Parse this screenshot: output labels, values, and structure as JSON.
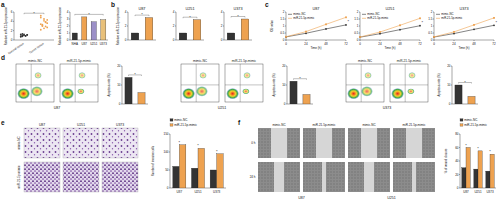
{
  "figure": {
    "panels": [
      "a",
      "b",
      "c",
      "d",
      "e",
      "f"
    ],
    "flow": [
      {
        "cell": "U87",
        "conditions": [
          "mimic-NC",
          "miR-21-5p-mimic"
        ]
      },
      {
        "cell": "U251",
        "conditions": [
          "mimic-NC",
          "miR-21-5p-mimic"
        ]
      },
      {
        "cell": "U373",
        "conditions": [
          "mimic-NC",
          "miR-21-5p-mimic"
        ]
      }
    ],
    "transwell": {
      "columns": [
        "U87",
        "U251",
        "U373"
      ],
      "rows": [
        "mimic-NC",
        "miR-21-5p-mimic"
      ]
    },
    "wound": {
      "columns": [
        "mimic-NC",
        "miR-21-5p-mimic",
        "mimic-NC",
        "miR-21-5p-mimic"
      ],
      "cells": [
        "U87",
        "U251"
      ],
      "rows": [
        "0 h",
        "24 h"
      ]
    }
  },
  "chart_data": [
    {
      "type": "dot",
      "ylabel": "Relative miR-21-5p expression",
      "categories": [
        "Normal tissue",
        "Tumor tissue"
      ],
      "values": [
        [
          0.8,
          1.0,
          1.2,
          0.9,
          1.1,
          0.7,
          1.3,
          1.0,
          0.9,
          1.1,
          1.2,
          0.8
        ],
        [
          2.2,
          3.1,
          4.5,
          3.8,
          2.7,
          5.2,
          3.3,
          4.1,
          2.9,
          3.6,
          4.8,
          3.0,
          2.5,
          3.9,
          4.3,
          3.4
        ]
      ],
      "colors": [
        "#333333",
        "#eea250"
      ],
      "ylim": [
        0,
        6
      ],
      "yticks": [
        0,
        2,
        4,
        6
      ],
      "annotations": [
        "*"
      ]
    },
    {
      "type": "bar",
      "ylabel": "Relative miR-21-5p expression",
      "categories": [
        "NHA",
        "U87",
        "U251",
        "U373"
      ],
      "values": [
        1,
        3.3,
        2.6,
        2.9
      ],
      "colors": [
        "#333333",
        "#eea250",
        "#9b8fc7",
        "#e8c07a"
      ],
      "ylim": [
        0,
        4
      ],
      "yticks": [
        0,
        1,
        2,
        3,
        4
      ],
      "annotations": [
        "*"
      ]
    },
    {
      "type": "bar",
      "title": "U87",
      "ylabel": "Relative miR-21-5p expression",
      "categories": [
        null,
        null
      ],
      "values": [
        1,
        3.2
      ],
      "colors": [
        "#333333",
        "#eea250"
      ],
      "ylim": [
        0,
        4
      ],
      "yticks": [
        0,
        2,
        4
      ],
      "annotations": [
        "*"
      ]
    },
    {
      "type": "bar",
      "title": "U251",
      "categories": [
        null,
        null
      ],
      "values": [
        1,
        2.9
      ],
      "colors": [
        "#333333",
        "#eea250"
      ],
      "ylim": [
        0,
        4
      ],
      "yticks": [
        0,
        2,
        4
      ],
      "annotations": [
        "*"
      ]
    },
    {
      "type": "bar",
      "title": "U373",
      "categories": [
        null,
        null
      ],
      "values": [
        1,
        3.0
      ],
      "colors": [
        "#333333",
        "#eea250"
      ],
      "ylim": [
        0,
        4
      ],
      "yticks": [
        0,
        2,
        4
      ],
      "annotations": [
        "*"
      ]
    },
    {
      "type": "line",
      "title": "U87",
      "xlabel": "Time (h)",
      "ylabel": "OD value",
      "x": [
        0,
        24,
        48,
        72
      ],
      "xlim": [
        0,
        72
      ],
      "xticks": [
        0,
        24,
        48,
        72
      ],
      "ylim": [
        0,
        2
      ],
      "yticks": [
        0,
        0.5,
        1,
        1.5,
        2
      ],
      "legend": "upper left",
      "series": [
        {
          "name": "mimic-NC",
          "color": "#333333",
          "marker": "circle",
          "values": [
            0.22,
            0.48,
            0.79,
            1.08
          ]
        },
        {
          "name": "miR-21-5p-mimic",
          "color": "#eea250",
          "marker": "square",
          "values": [
            0.23,
            0.6,
            1.12,
            1.62
          ]
        }
      ],
      "annotations": [
        "*"
      ]
    },
    {
      "type": "line",
      "title": "U251",
      "xlabel": "Time (h)",
      "x": [
        0,
        24,
        48,
        72
      ],
      "xlim": [
        0,
        72
      ],
      "xticks": [
        0,
        24,
        48,
        72
      ],
      "ylim": [
        0,
        2
      ],
      "yticks": [
        0,
        0.5,
        1,
        1.5,
        2
      ],
      "legend": "upper left",
      "series": [
        {
          "name": "mimic-NC",
          "color": "#333333",
          "marker": "circle",
          "values": [
            0.2,
            0.45,
            0.74,
            1.02
          ]
        },
        {
          "name": "miR-21-5p-mimic",
          "color": "#eea250",
          "marker": "square",
          "values": [
            0.21,
            0.57,
            1.05,
            1.55
          ]
        }
      ],
      "annotations": [
        "*"
      ]
    },
    {
      "type": "line",
      "title": "U373",
      "xlabel": "Time (h)",
      "x": [
        0,
        24,
        48,
        72
      ],
      "xlim": [
        0,
        72
      ],
      "xticks": [
        0,
        24,
        48,
        72
      ],
      "ylim": [
        0,
        2
      ],
      "yticks": [
        0,
        0.5,
        1,
        1.5,
        2
      ],
      "legend": "upper left",
      "series": [
        {
          "name": "mimic-NC",
          "color": "#333333",
          "marker": "circle",
          "values": [
            0.21,
            0.46,
            0.76,
            1.05
          ]
        },
        {
          "name": "miR-21-5p-mimic",
          "color": "#eea250",
          "marker": "square",
          "values": [
            0.22,
            0.58,
            1.08,
            1.58
          ]
        }
      ],
      "annotations": [
        "*"
      ]
    },
    {
      "type": "bar",
      "ylabel": "Apoptosis rate (%)",
      "categories": [
        null,
        null
      ],
      "values": [
        14,
        6
      ],
      "colors": [
        "#333333",
        "#eea250"
      ],
      "ylim": [
        0,
        20
      ],
      "yticks": [
        0,
        10,
        20
      ],
      "annotations": [
        "*"
      ]
    },
    {
      "type": "bar",
      "ylabel": "Apoptosis rate (%)",
      "categories": [
        null,
        null
      ],
      "values": [
        12,
        5
      ],
      "colors": [
        "#333333",
        "#eea250"
      ],
      "ylim": [
        0,
        20
      ],
      "yticks": [
        0,
        10,
        20
      ],
      "annotations": [
        "*"
      ]
    },
    {
      "type": "bar",
      "ylabel": "Apoptosis rate (%)",
      "categories": [
        null,
        null
      ],
      "values": [
        10,
        4
      ],
      "colors": [
        "#333333",
        "#eea250"
      ],
      "ylim": [
        0,
        20
      ],
      "yticks": [
        0,
        10,
        20
      ],
      "annotations": [
        "*"
      ]
    },
    {
      "type": "bar",
      "ylabel": "Number of invasive cells",
      "categories": [
        "U87",
        "U251",
        "U373"
      ],
      "legend": "top",
      "series": [
        {
          "name": "mimic-NC",
          "color": "#333333",
          "values": [
            60,
            55,
            50
          ]
        },
        {
          "name": "miR-21-5p-mimic",
          "color": "#eea250",
          "values": [
            120,
            110,
            95
          ]
        }
      ],
      "ylim": [
        0,
        150
      ],
      "yticks": [
        0,
        50,
        100,
        150
      ],
      "annotations": [
        "*",
        "*",
        "*"
      ]
    },
    {
      "type": "bar",
      "ylabel": "% of wound closure",
      "categories": [
        "U87",
        "U251",
        "U373"
      ],
      "legend": "top",
      "series": [
        {
          "name": "mimic-NC",
          "color": "#333333",
          "values": [
            30,
            28,
            25
          ]
        },
        {
          "name": "miR-21-5p-mimic",
          "color": "#eea250",
          "values": [
            60,
            55,
            50
          ]
        }
      ],
      "ylim": [
        0,
        80
      ],
      "yticks": [
        0,
        20,
        40,
        60,
        80
      ],
      "annotations": [
        "*",
        "*",
        "*"
      ]
    }
  ]
}
